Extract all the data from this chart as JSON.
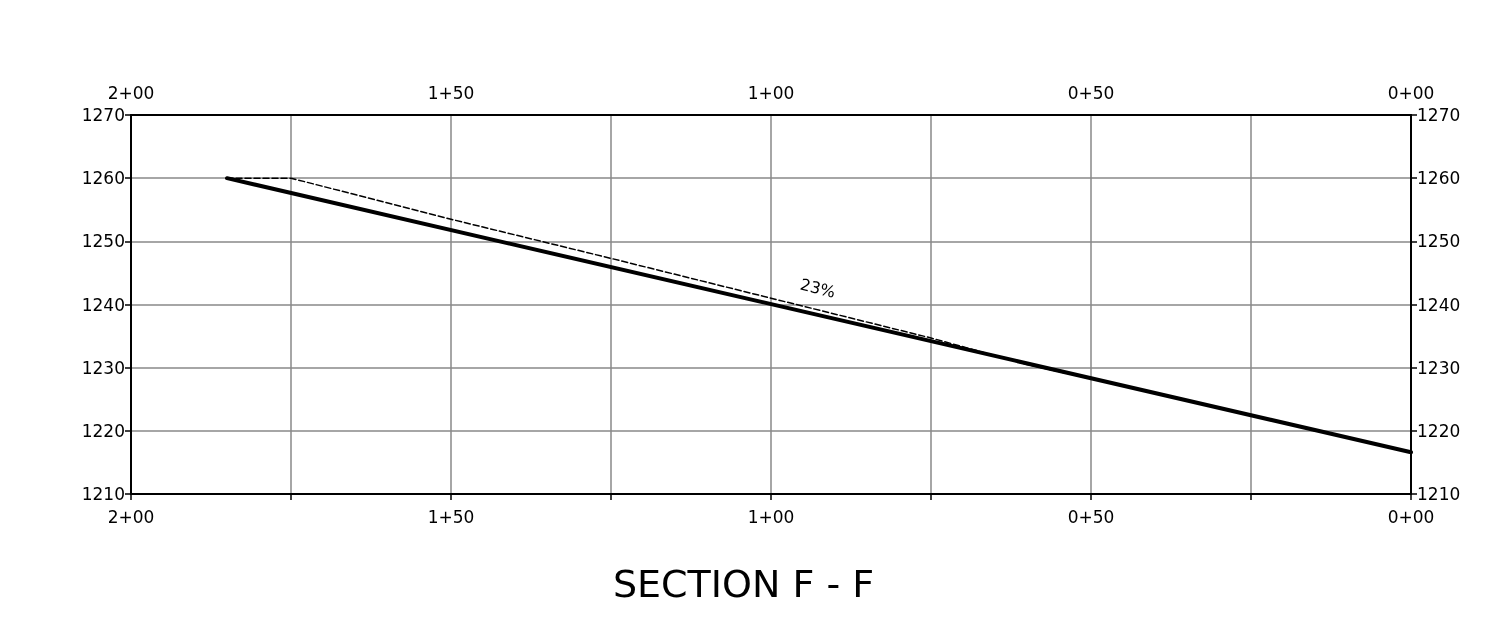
{
  "chart_data": {
    "type": "line",
    "title": "SECTION F - F",
    "categories": [
      "2+00",
      null,
      null,
      null,
      null,
      null,
      null,
      null,
      null,
      null,
      "1+50",
      null,
      null,
      null,
      null,
      null,
      null,
      null,
      null,
      null,
      "1+00",
      null,
      null,
      null,
      null,
      null,
      null,
      null,
      null,
      null,
      "0+50",
      null,
      null,
      null,
      null,
      null,
      null,
      null,
      null,
      null,
      "0+00"
    ],
    "series": [
      {
        "color": "#000000",
        "line_style": "solid",
        "values": [
          null,
          null,
          null,
          1260,
          null,
          null,
          null,
          null,
          null,
          null,
          null,
          null,
          null,
          null,
          null,
          null,
          null,
          null,
          null,
          null,
          null,
          null,
          null,
          null,
          null,
          null,
          null,
          null,
          null,
          null,
          null,
          null,
          null,
          null,
          null,
          null,
          null,
          null,
          null,
          null,
          1216.6
        ]
      },
      {
        "color": "#000000",
        "line_style": "dashed",
        "values": [
          null,
          null,
          null,
          1260,
          null,
          1260,
          null,
          null,
          null,
          null,
          1253.5,
          null,
          null,
          null,
          null,
          1247.3,
          null,
          null,
          null,
          null,
          1241,
          null,
          null,
          null,
          null,
          1234.7,
          null,
          null,
          1230.5,
          null,
          null,
          null,
          1226,
          null,
          null,
          null,
          1221.3,
          1220,
          null,
          null,
          null
        ]
      }
    ],
    "annotations": [
      "23%"
    ],
    "ylim": [
      1210,
      1270
    ],
    "yticks": [
      1210,
      1220,
      1230,
      1240,
      1250,
      1260,
      1270
    ],
    "y2lim": [
      1210,
      1270
    ],
    "y2ticks": [
      1210,
      1220,
      1230,
      1240,
      1250,
      1260,
      1270
    ],
    "grid": true,
    "marker": "none"
  }
}
